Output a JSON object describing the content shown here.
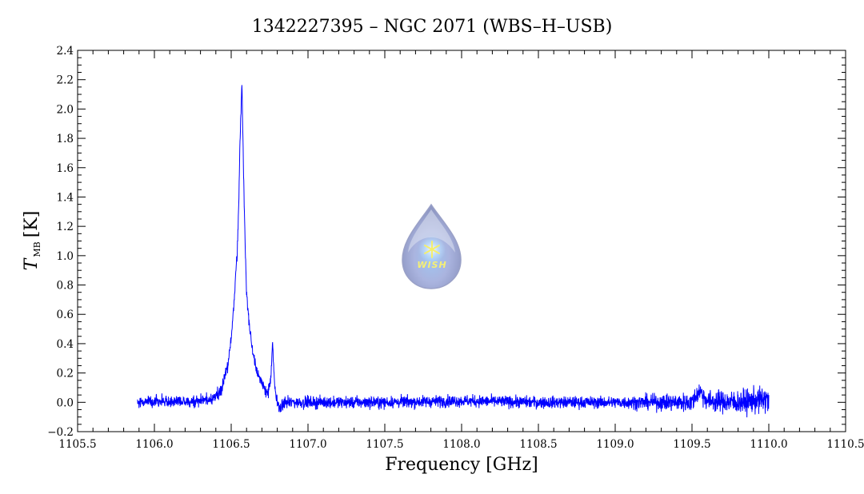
{
  "chart_data": {
    "type": "line",
    "title": "1342227395 – NGC 2071 (WBS–H–USB)",
    "xlabel": "Frequency [GHz]",
    "ylabel": {
      "symbol": "T",
      "subscript": "MB",
      "unit": "[K]"
    },
    "xlim": [
      1105.5,
      1110.5
    ],
    "ylim": [
      -0.2,
      2.4
    ],
    "xticks": [
      1105.5,
      1106.0,
      1106.5,
      1107.0,
      1107.5,
      1108.0,
      1108.5,
      1109.0,
      1109.5,
      1110.0,
      1110.5
    ],
    "xtick_labels": [
      "1105.5",
      "1106.0",
      "1106.5",
      "1107.0",
      "1107.5",
      "1108.0",
      "1108.5",
      "1109.0",
      "1109.5",
      "1110.0",
      "1110.5"
    ],
    "yticks": [
      -0.2,
      0.0,
      0.2,
      0.4,
      0.6,
      0.8,
      1.0,
      1.2,
      1.4,
      1.6,
      1.8,
      2.0,
      2.2,
      2.4
    ],
    "ytick_labels": [
      "−0.2",
      "0.0",
      "0.2",
      "0.4",
      "0.6",
      "0.8",
      "1.0",
      "1.2",
      "1.4",
      "1.6",
      "1.8",
      "2.0",
      "2.2",
      "2.4"
    ],
    "grid": false,
    "color": "#0000ff",
    "series": [
      {
        "x": [
          1105.89,
          1106.0,
          1106.2,
          1106.35,
          1106.4,
          1106.44,
          1106.48,
          1106.5,
          1106.52,
          1106.54,
          1106.55,
          1106.56,
          1106.57,
          1106.58,
          1106.59,
          1106.6,
          1106.62,
          1106.64,
          1106.66,
          1106.68,
          1106.7,
          1106.72,
          1106.74,
          1106.75,
          1106.76,
          1106.77,
          1106.78,
          1106.79,
          1106.8,
          1106.82,
          1106.85,
          1107.0,
          1107.5,
          1108.0,
          1108.5,
          1109.0,
          1109.3,
          1109.5,
          1109.55,
          1109.6,
          1109.8,
          1110.0
        ],
        "y": [
          0.0,
          0.01,
          0.0,
          0.02,
          0.04,
          0.1,
          0.25,
          0.45,
          0.7,
          1.05,
          1.4,
          1.9,
          2.16,
          1.6,
          1.1,
          0.75,
          0.5,
          0.35,
          0.25,
          0.18,
          0.12,
          0.09,
          0.07,
          0.1,
          0.2,
          0.4,
          0.15,
          0.05,
          0.0,
          -0.04,
          0.0,
          0.0,
          0.0,
          0.01,
          0.0,
          0.0,
          0.0,
          0.0,
          0.08,
          0.01,
          0.0,
          0.02
        ]
      }
    ],
    "logo_text": "WISH"
  }
}
